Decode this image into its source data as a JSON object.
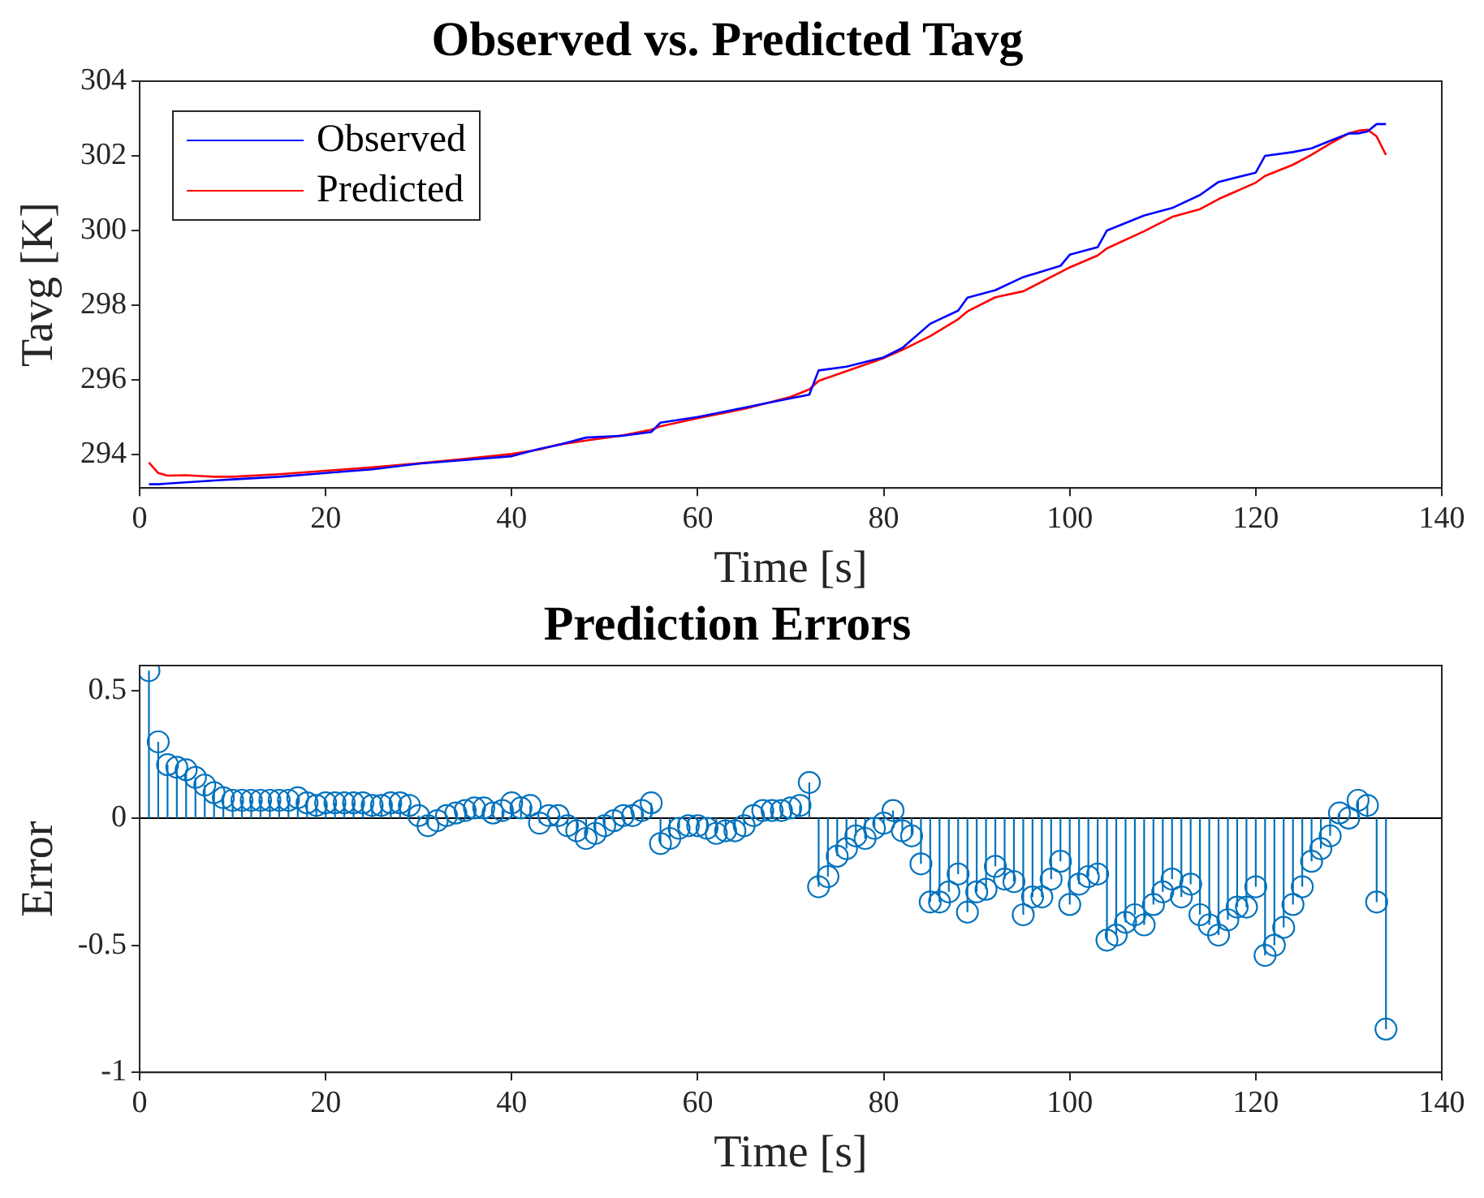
{
  "chart_data": [
    {
      "type": "line",
      "title": "Observed vs. Predicted Tavg",
      "xlabel": "Time [s]",
      "ylabel": "Tavg [K]",
      "xlim": [
        0,
        140
      ],
      "xticks": [
        0,
        20,
        40,
        60,
        80,
        100,
        120,
        140
      ],
      "ylim": [
        293.1,
        304
      ],
      "yticks": [
        294,
        296,
        298,
        300,
        302,
        304
      ],
      "legend": "top left",
      "marker": "none",
      "line_style": "solid",
      "series": [
        {
          "name": "Observed",
          "color": "#0000ff",
          "x": [
            1,
            2,
            3,
            5,
            8,
            10,
            15,
            20,
            25,
            30,
            35,
            40,
            43,
            45,
            48,
            52,
            55,
            56,
            60,
            65,
            70,
            72,
            73,
            76,
            80,
            82,
            85,
            88,
            89,
            92,
            95,
            99,
            100,
            103,
            104,
            108,
            111,
            114,
            116,
            120,
            121,
            124,
            126,
            128,
            130,
            131,
            132,
            133,
            134
          ],
          "values": [
            293.2,
            293.2,
            293.22,
            293.25,
            293.3,
            293.33,
            293.4,
            293.5,
            293.6,
            293.75,
            293.85,
            293.95,
            294.15,
            294.25,
            294.45,
            294.5,
            294.6,
            294.85,
            295.0,
            295.25,
            295.5,
            295.6,
            296.25,
            296.35,
            296.6,
            296.85,
            297.5,
            297.85,
            298.2,
            298.4,
            298.75,
            299.05,
            299.35,
            299.55,
            300.0,
            300.4,
            300.6,
            300.95,
            301.3,
            301.55,
            302.0,
            302.1,
            302.2,
            302.4,
            302.6,
            302.6,
            302.65,
            302.85,
            302.85
          ]
        },
        {
          "name": "Predicted",
          "color": "#ff0000",
          "x": [
            1,
            2,
            3,
            5,
            8,
            10,
            15,
            20,
            25,
            30,
            35,
            40,
            43,
            45,
            48,
            52,
            55,
            56,
            60,
            65,
            70,
            72,
            73,
            76,
            80,
            82,
            85,
            88,
            89,
            92,
            95,
            99,
            100,
            103,
            104,
            108,
            111,
            114,
            116,
            120,
            121,
            124,
            126,
            128,
            130,
            131,
            132,
            133,
            134
          ],
          "values": [
            293.78,
            293.5,
            293.43,
            293.44,
            293.4,
            293.4,
            293.47,
            293.56,
            293.65,
            293.76,
            293.88,
            294.01,
            294.13,
            294.26,
            294.37,
            294.51,
            294.66,
            294.75,
            294.97,
            295.22,
            295.54,
            295.74,
            295.97,
            296.23,
            296.58,
            296.8,
            297.17,
            297.62,
            297.83,
            298.21,
            298.37,
            298.88,
            299.01,
            299.33,
            299.52,
            299.98,
            300.36,
            300.57,
            300.84,
            301.28,
            301.46,
            301.76,
            302.03,
            302.33,
            302.6,
            302.67,
            302.7,
            302.52,
            302.02
          ]
        }
      ]
    },
    {
      "type": "lollipop",
      "title": "Prediction Errors",
      "xlabel": "Time [s]",
      "ylabel": "Error",
      "xlim": [
        0,
        140
      ],
      "xticks": [
        0,
        20,
        40,
        60,
        80,
        100,
        120,
        140
      ],
      "ylim": [
        -1,
        0.6
      ],
      "yticks": [
        -1,
        {
          "value": -0.5,
          "label": "-0.5"
        },
        0,
        {
          "value": 0.5,
          "label": "0.5"
        }
      ],
      "ref_lines": [
        {
          "axis": "y",
          "value": 0,
          "color": "#000000"
        }
      ],
      "marker": "circle",
      "color": "#0072bd",
      "x": [
        1,
        2,
        3,
        4,
        5,
        6,
        7,
        8,
        9,
        10,
        11,
        12,
        13,
        14,
        15,
        16,
        17,
        18,
        19,
        20,
        21,
        22,
        23,
        24,
        25,
        26,
        27,
        28,
        29,
        30,
        31,
        32,
        33,
        34,
        35,
        36,
        37,
        38,
        39,
        40,
        41,
        42,
        43,
        44,
        45,
        46,
        47,
        48,
        49,
        50,
        51,
        52,
        53,
        54,
        55,
        56,
        57,
        58,
        59,
        60,
        61,
        62,
        63,
        64,
        65,
        66,
        67,
        68,
        69,
        70,
        71,
        72,
        73,
        74,
        75,
        76,
        77,
        78,
        79,
        80,
        81,
        82,
        83,
        84,
        85,
        86,
        87,
        88,
        89,
        90,
        91,
        92,
        93,
        94,
        95,
        96,
        97,
        98,
        99,
        100,
        101,
        102,
        103,
        104,
        105,
        106,
        107,
        108,
        109,
        110,
        111,
        112,
        113,
        114,
        115,
        116,
        117,
        118,
        119,
        120,
        121,
        122,
        123,
        124,
        125,
        126,
        127,
        128,
        129,
        130,
        131,
        132,
        133,
        134
      ],
      "values": [
        0.58,
        0.3,
        0.21,
        0.2,
        0.19,
        0.16,
        0.13,
        0.1,
        0.08,
        0.07,
        0.07,
        0.07,
        0.07,
        0.07,
        0.07,
        0.07,
        0.08,
        0.06,
        0.05,
        0.06,
        0.06,
        0.06,
        0.06,
        0.06,
        0.05,
        0.05,
        0.06,
        0.06,
        0.05,
        0.01,
        -0.03,
        -0.01,
        0.01,
        0.02,
        0.03,
        0.04,
        0.04,
        0.02,
        0.03,
        0.06,
        0.04,
        0.05,
        -0.02,
        0.01,
        0.01,
        -0.03,
        -0.05,
        -0.08,
        -0.06,
        -0.03,
        -0.01,
        0.01,
        0.01,
        0.03,
        0.06,
        -0.1,
        -0.08,
        -0.04,
        -0.03,
        -0.03,
        -0.04,
        -0.06,
        -0.05,
        -0.05,
        -0.03,
        0.01,
        0.03,
        0.03,
        0.03,
        0.04,
        0.05,
        0.14,
        -0.27,
        -0.23,
        -0.15,
        -0.12,
        -0.07,
        -0.08,
        -0.04,
        -0.02,
        0.03,
        -0.05,
        -0.07,
        -0.18,
        -0.33,
        -0.33,
        -0.29,
        -0.22,
        -0.37,
        -0.29,
        -0.28,
        -0.19,
        -0.24,
        -0.25,
        -0.38,
        -0.31,
        -0.31,
        -0.24,
        -0.17,
        -0.34,
        -0.26,
        -0.23,
        -0.22,
        -0.48,
        -0.46,
        -0.41,
        -0.38,
        -0.42,
        -0.34,
        -0.29,
        -0.24,
        -0.31,
        -0.26,
        -0.38,
        -0.42,
        -0.46,
        -0.4,
        -0.35,
        -0.35,
        -0.27,
        -0.54,
        -0.5,
        -0.43,
        -0.34,
        -0.27,
        -0.17,
        -0.12,
        -0.07,
        0.02,
        0.0,
        0.07,
        0.05,
        -0.33,
        -0.83
      ]
    }
  ]
}
